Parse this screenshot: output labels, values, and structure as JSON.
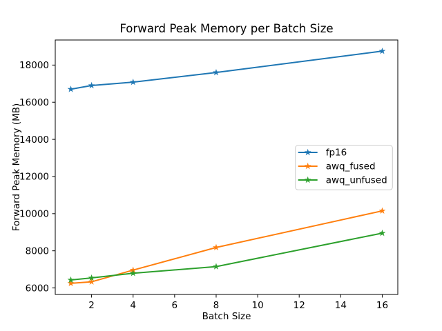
{
  "figure": {
    "background": "#ffffff",
    "text_color": "#000000",
    "spine_color": "#000000"
  },
  "chart_data": {
    "type": "line",
    "title": "Forward Peak Memory per Batch Size",
    "xlabel": "Batch Size",
    "ylabel": "Forward Peak Memory (MB)",
    "x": [
      1,
      2,
      4,
      8,
      16
    ],
    "series": [
      {
        "name": "fp16",
        "color": "#1f77b4",
        "marker": "star",
        "values": [
          16700,
          16900,
          17080,
          17600,
          18750
        ]
      },
      {
        "name": "awq_fused",
        "color": "#ff7f0e",
        "marker": "star",
        "values": [
          6250,
          6330,
          6960,
          8180,
          10150
        ]
      },
      {
        "name": "awq_unfused",
        "color": "#2ca02c",
        "marker": "star",
        "values": [
          6430,
          6540,
          6790,
          7150,
          8950
        ]
      }
    ],
    "xlim": [
      0.25,
      16.75
    ],
    "ylim": [
      5650,
      19350
    ],
    "xticks": [
      2,
      4,
      6,
      8,
      10,
      12,
      14,
      16
    ],
    "yticks": [
      6000,
      8000,
      10000,
      12000,
      14000,
      16000,
      18000
    ],
    "grid": false,
    "legend": {
      "position": "center-right",
      "entries": [
        "fp16",
        "awq_fused",
        "awq_unfused"
      ],
      "border_color": "#cccccc",
      "fill_color": "rgba(255,255,255,0.8)"
    }
  }
}
